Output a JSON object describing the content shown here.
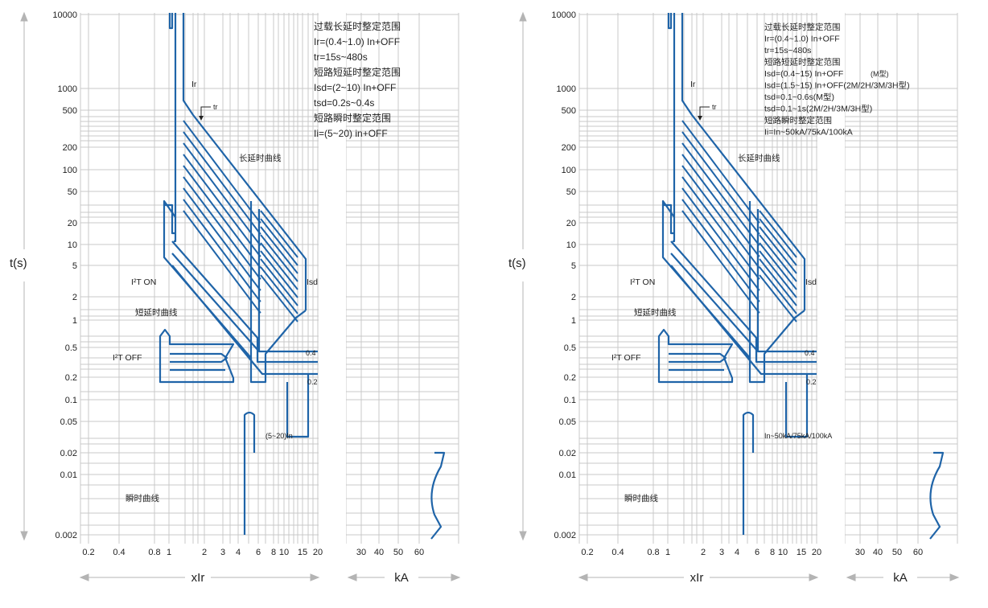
{
  "colors": {
    "curve": "#1f64a8",
    "grid": "#c8c8c8",
    "arrow": "#b4b4b4",
    "text": "#222222"
  },
  "chart_data": [
    {
      "type": "line",
      "y_label": "t(s)",
      "y_ticks": [
        "10000",
        "1000",
        "500",
        "200",
        "100",
        "50",
        "20",
        "10",
        "5",
        "2",
        "1",
        "0.5",
        "0.2",
        "0.1",
        "0.05",
        "0.02",
        "0.01",
        "0.002"
      ],
      "x_label": "xIr",
      "x_ticks": [
        "0.2",
        "0.4",
        "0.8",
        "1",
        "2",
        "3",
        "4",
        "6",
        "8",
        "10",
        "15",
        "20"
      ],
      "kA_label": "kA",
      "kA_ticks": [
        "30",
        "40",
        "50",
        "60"
      ],
      "legend_lines": [
        "过载长延时整定范围",
        "Ir=(0.4~1.0) In+OFF",
        "tr=15s~480s",
        "短路短延时整定范围",
        "Isd=(2~10) In+OFF",
        "tsd=0.2s~0.4s",
        "短路瞬时整定范围",
        "Ii=(5~20)  in+OFF"
      ],
      "annotations": {
        "ir": "Ir",
        "tr": "tr",
        "long": "长延时曲线",
        "isd": "Isd",
        "i2t_on": "I²T ON",
        "short": "短延时曲线",
        "i2t_off": "I²T OFF",
        "v04": "0.4",
        "v02": "0.2",
        "inst_range": "(5~20)In",
        "inst": "瞬时曲线"
      }
    },
    {
      "type": "line",
      "y_label": "t(s)",
      "y_ticks": [
        "10000",
        "1000",
        "500",
        "200",
        "100",
        "50",
        "20",
        "10",
        "5",
        "2",
        "1",
        "0.5",
        "0.2",
        "0.1",
        "0.05",
        "0.02",
        "0.01",
        "0.002"
      ],
      "x_label": "xIr",
      "x_ticks": [
        "0.2",
        "0.4",
        "0.8",
        "1",
        "2",
        "3",
        "4",
        "6",
        "8",
        "10",
        "15",
        "20"
      ],
      "kA_label": "kA",
      "kA_ticks": [
        "30",
        "40",
        "50",
        "60"
      ],
      "legend_lines": [
        "过载长延时整定范围",
        "Ir=(0.4~1.0) In+OFF",
        "tr=15s~480s",
        "短路短延时整定范围",
        "Isd=(0.4~15) In+OFF",
        "Isd=(1.5~15) In+OFF(2M/2H/3M/3H型)",
        "tsd=0.1~0.6s(M型)",
        "tsd=0.1~1s(2M/2H/3M/3H型)",
        "短路瞬时整定范围",
        "Ii=In~50kA/75kA/100kA"
      ],
      "legend_extra": "(M型)",
      "annotations": {
        "ir": "Ir",
        "tr": "tr",
        "long": "长延时曲线",
        "isd": "Isd",
        "i2t_on": "I²T ON",
        "short": "短延时曲线",
        "i2t_off": "I²T OFF",
        "v04": "0.4",
        "v02": "0.2",
        "inst_range": "In~50kA/75kA/100kA",
        "inst": "瞬时曲线"
      }
    }
  ]
}
